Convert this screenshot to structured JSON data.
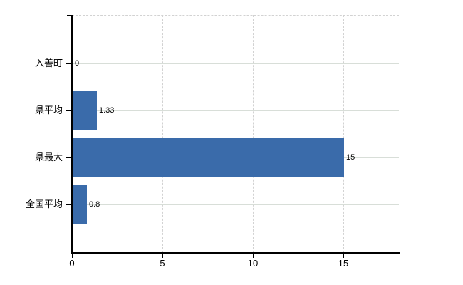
{
  "chart": {
    "background_color": "#ffffff",
    "bar_color": "#3a6baa",
    "axis_color": "#000000",
    "h_gridline_color": "#d8ded8",
    "v_gridline_color": "#d2d2d2",
    "text_color": "#000000"
  },
  "chart_data": {
    "type": "bar",
    "orientation": "horizontal",
    "title": "",
    "xlabel": "",
    "ylabel": "",
    "categories": [
      "入善町",
      "県平均",
      "県最大",
      "全国平均"
    ],
    "values": [
      0,
      1.33,
      15,
      0.8
    ],
    "value_labels": [
      "0",
      "1.33",
      "15",
      "0.8"
    ],
    "x_ticks": [
      0,
      5,
      10,
      15
    ],
    "x_tick_labels": [
      "0",
      "5",
      "10",
      "15"
    ],
    "xlim": [
      0,
      18.1
    ],
    "grid": true,
    "legend": false
  }
}
